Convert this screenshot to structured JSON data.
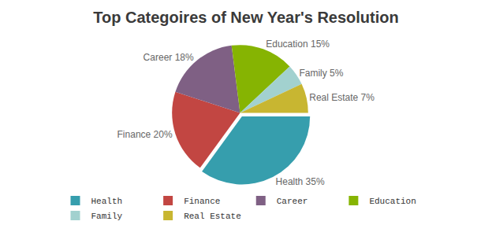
{
  "chart_data": {
    "type": "pie",
    "title": "Top Categoires of New Year's Resolution",
    "categories": [
      "Health",
      "Finance",
      "Career",
      "Education",
      "Family",
      "Real Estate"
    ],
    "values": [
      35,
      20,
      18,
      15,
      5,
      7
    ],
    "colors": [
      "#369ead",
      "#c24642",
      "#7f6084",
      "#86b402",
      "#a2d1cf",
      "#c8b631"
    ],
    "data_labels": true,
    "value_labels": [
      "Health 35%",
      "Finance 20%",
      "Career 18%",
      "Education 15%",
      "Family 5%",
      "Real Estate 7%"
    ],
    "legend": "bottom"
  }
}
